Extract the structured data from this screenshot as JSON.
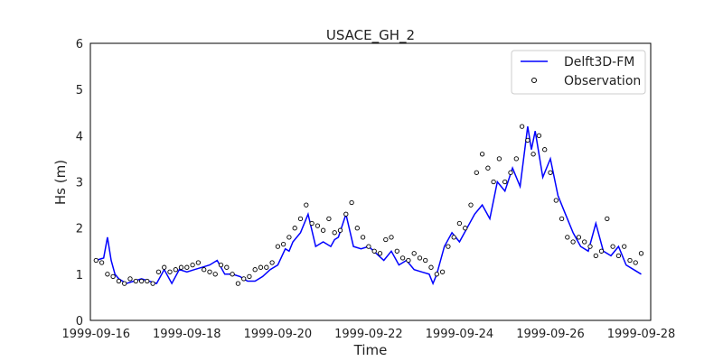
{
  "chart_data": {
    "type": "line",
    "title": "USACE_GH_2",
    "xlabel": "Time",
    "ylabel": "Hs (m)",
    "xlim": [
      "1999-09-15T21:00",
      "1999-09-28T05:00"
    ],
    "ylim": [
      0,
      6
    ],
    "yticks": [
      "0",
      "1",
      "2",
      "3",
      "4",
      "5",
      "6"
    ],
    "xticks": [
      "1999-09-16",
      "1999-09-18",
      "1999-09-20",
      "1999-09-22",
      "1999-09-24",
      "1999-09-26",
      "1999-09-28"
    ],
    "grid": false,
    "legend": "top-right",
    "colors": {
      "model": "#0000ff",
      "observation_edge": "#000000",
      "axes": "#000000"
    },
    "series": [
      {
        "name": "Delft3D-FM",
        "style": "line",
        "x": [
          "1999-09-16T00:00",
          "1999-09-16T04:00",
          "1999-09-16T06:00",
          "1999-09-16T08:00",
          "1999-09-16T10:00",
          "1999-09-16T12:00",
          "1999-09-16T16:00",
          "1999-09-16T20:00",
          "1999-09-17T00:00",
          "1999-09-17T04:00",
          "1999-09-17T08:00",
          "1999-09-17T12:00",
          "1999-09-17T16:00",
          "1999-09-17T20:00",
          "1999-09-18T00:00",
          "1999-09-18T04:00",
          "1999-09-18T08:00",
          "1999-09-18T12:00",
          "1999-09-18T16:00",
          "1999-09-18T20:00",
          "1999-09-19T00:00",
          "1999-09-19T04:00",
          "1999-09-19T08:00",
          "1999-09-19T12:00",
          "1999-09-19T16:00",
          "1999-09-19T20:00",
          "1999-09-20T00:00",
          "1999-09-20T04:00",
          "1999-09-20T06:00",
          "1999-09-20T08:00",
          "1999-09-20T12:00",
          "1999-09-20T16:00",
          "1999-09-20T20:00",
          "1999-09-21T00:00",
          "1999-09-21T04:00",
          "1999-09-21T06:00",
          "1999-09-21T08:00",
          "1999-09-21T12:00",
          "1999-09-21T16:00",
          "1999-09-21T20:00",
          "1999-09-22T00:00",
          "1999-09-22T04:00",
          "1999-09-22T08:00",
          "1999-09-22T12:00",
          "1999-09-22T16:00",
          "1999-09-22T20:00",
          "1999-09-23T00:00",
          "1999-09-23T04:00",
          "1999-09-23T08:00",
          "1999-09-23T10:00",
          "1999-09-23T12:00",
          "1999-09-23T16:00",
          "1999-09-23T20:00",
          "1999-09-24T00:00",
          "1999-09-24T04:00",
          "1999-09-24T08:00",
          "1999-09-24T12:00",
          "1999-09-24T16:00",
          "1999-09-24T20:00",
          "1999-09-25T00:00",
          "1999-09-25T04:00",
          "1999-09-25T08:00",
          "1999-09-25T12:00",
          "1999-09-25T14:00",
          "1999-09-25T16:00",
          "1999-09-25T20:00",
          "1999-09-26T00:00",
          "1999-09-26T04:00",
          "1999-09-26T08:00",
          "1999-09-26T12:00",
          "1999-09-26T16:00",
          "1999-09-26T20:00",
          "1999-09-27T00:00",
          "1999-09-27T04:00",
          "1999-09-27T08:00",
          "1999-09-27T12:00",
          "1999-09-27T16:00",
          "1999-09-27T20:00",
          "1999-09-28T00:00"
        ],
        "y": [
          1.3,
          1.35,
          1.8,
          1.3,
          1.0,
          0.9,
          0.8,
          0.85,
          0.9,
          0.85,
          0.8,
          1.1,
          0.8,
          1.1,
          1.05,
          1.1,
          1.15,
          1.2,
          1.3,
          1.0,
          1.0,
          0.95,
          0.85,
          0.85,
          0.95,
          1.1,
          1.2,
          1.55,
          1.5,
          1.7,
          1.9,
          2.3,
          1.6,
          1.7,
          1.6,
          1.75,
          1.8,
          2.3,
          1.6,
          1.55,
          1.6,
          1.45,
          1.3,
          1.5,
          1.2,
          1.3,
          1.1,
          1.05,
          1.0,
          0.8,
          1.0,
          1.6,
          1.9,
          1.7,
          2.0,
          2.3,
          2.5,
          2.2,
          3.0,
          2.8,
          3.3,
          2.9,
          4.2,
          3.7,
          4.1,
          3.1,
          3.5,
          2.7,
          2.3,
          1.9,
          1.6,
          1.5,
          2.1,
          1.5,
          1.4,
          1.6,
          1.2,
          1.1,
          1.0
        ]
      },
      {
        "name": "Observation",
        "style": "markers",
        "x": [
          "1999-09-16T00:00",
          "1999-09-16T03:00",
          "1999-09-16T06:00",
          "1999-09-16T09:00",
          "1999-09-16T12:00",
          "1999-09-16T15:00",
          "1999-09-16T18:00",
          "1999-09-16T21:00",
          "1999-09-17T00:00",
          "1999-09-17T03:00",
          "1999-09-17T06:00",
          "1999-09-17T09:00",
          "1999-09-17T12:00",
          "1999-09-17T15:00",
          "1999-09-17T18:00",
          "1999-09-17T21:00",
          "1999-09-18T00:00",
          "1999-09-18T03:00",
          "1999-09-18T06:00",
          "1999-09-18T09:00",
          "1999-09-18T12:00",
          "1999-09-18T15:00",
          "1999-09-18T18:00",
          "1999-09-18T21:00",
          "1999-09-19T00:00",
          "1999-09-19T03:00",
          "1999-09-19T06:00",
          "1999-09-19T09:00",
          "1999-09-19T12:00",
          "1999-09-19T15:00",
          "1999-09-19T18:00",
          "1999-09-19T21:00",
          "1999-09-20T00:00",
          "1999-09-20T03:00",
          "1999-09-20T06:00",
          "1999-09-20T09:00",
          "1999-09-20T12:00",
          "1999-09-20T15:00",
          "1999-09-20T18:00",
          "1999-09-20T21:00",
          "1999-09-21T00:00",
          "1999-09-21T03:00",
          "1999-09-21T06:00",
          "1999-09-21T09:00",
          "1999-09-21T12:00",
          "1999-09-21T15:00",
          "1999-09-21T18:00",
          "1999-09-21T21:00",
          "1999-09-22T00:00",
          "1999-09-22T03:00",
          "1999-09-22T06:00",
          "1999-09-22T09:00",
          "1999-09-22T12:00",
          "1999-09-22T15:00",
          "1999-09-22T18:00",
          "1999-09-22T21:00",
          "1999-09-23T00:00",
          "1999-09-23T03:00",
          "1999-09-23T06:00",
          "1999-09-23T09:00",
          "1999-09-23T12:00",
          "1999-09-23T15:00",
          "1999-09-23T18:00",
          "1999-09-23T21:00",
          "1999-09-24T00:00",
          "1999-09-24T03:00",
          "1999-09-24T06:00",
          "1999-09-24T09:00",
          "1999-09-24T12:00",
          "1999-09-24T15:00",
          "1999-09-24T18:00",
          "1999-09-24T21:00",
          "1999-09-25T00:00",
          "1999-09-25T03:00",
          "1999-09-25T06:00",
          "1999-09-25T09:00",
          "1999-09-25T12:00",
          "1999-09-25T15:00",
          "1999-09-25T18:00",
          "1999-09-25T21:00",
          "1999-09-26T00:00",
          "1999-09-26T03:00",
          "1999-09-26T06:00",
          "1999-09-26T09:00",
          "1999-09-26T12:00",
          "1999-09-26T15:00",
          "1999-09-26T18:00",
          "1999-09-26T21:00",
          "1999-09-27T00:00",
          "1999-09-27T03:00",
          "1999-09-27T06:00",
          "1999-09-27T09:00",
          "1999-09-27T12:00",
          "1999-09-27T15:00",
          "1999-09-27T18:00",
          "1999-09-27T21:00",
          "1999-09-28T00:00"
        ],
        "y": [
          1.3,
          1.25,
          1.0,
          0.95,
          0.85,
          0.8,
          0.9,
          0.85,
          0.85,
          0.85,
          0.8,
          1.05,
          1.15,
          1.05,
          1.1,
          1.15,
          1.15,
          1.2,
          1.25,
          1.1,
          1.05,
          1.0,
          1.2,
          1.15,
          1.0,
          0.8,
          0.9,
          0.95,
          1.1,
          1.15,
          1.15,
          1.25,
          1.6,
          1.65,
          1.8,
          2.0,
          2.2,
          2.5,
          2.1,
          2.05,
          1.95,
          2.2,
          1.9,
          1.95,
          2.3,
          2.55,
          2.0,
          1.8,
          1.6,
          1.5,
          1.45,
          1.75,
          1.8,
          1.5,
          1.35,
          1.3,
          1.45,
          1.35,
          1.3,
          1.15,
          1.0,
          1.05,
          1.6,
          1.8,
          2.1,
          2.0,
          2.5,
          3.2,
          3.6,
          3.3,
          3.0,
          3.5,
          3.0,
          3.2,
          3.5,
          4.2,
          3.9,
          3.6,
          4.0,
          3.7,
          3.2,
          2.6,
          2.2,
          1.8,
          1.7,
          1.8,
          1.7,
          1.6,
          1.4,
          1.5,
          2.2,
          1.6,
          1.4,
          1.6,
          1.3,
          1.25,
          1.45
        ]
      }
    ]
  }
}
